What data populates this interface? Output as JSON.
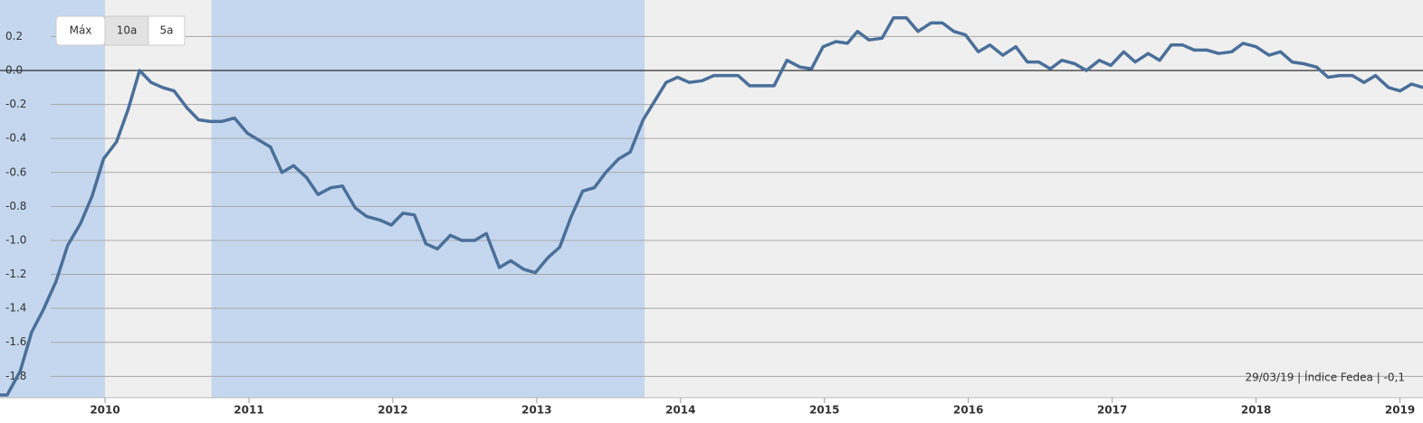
{
  "chart_data": {
    "type": "line",
    "buttons": [
      "Máx",
      "10a",
      "5a"
    ],
    "active_button": 1,
    "annotation": "29/03/19 | Índice Fedea | -0,1",
    "x": [
      2009.27,
      2009.32,
      2009.41,
      2009.49,
      2009.57,
      2009.66,
      2009.74,
      2009.83,
      2009.91,
      2009.99,
      2010.08,
      2010.16,
      2010.24,
      2010.32,
      2010.4,
      2010.48,
      2010.57,
      2010.65,
      2010.73,
      2010.81,
      2010.9,
      2010.99,
      2011.07,
      2011.15,
      2011.23,
      2011.31,
      2011.4,
      2011.48,
      2011.57,
      2011.65,
      2011.74,
      2011.82,
      2011.91,
      2011.99,
      2012.07,
      2012.15,
      2012.23,
      2012.31,
      2012.4,
      2012.48,
      2012.57,
      2012.65,
      2012.74,
      2012.82,
      2012.91,
      2012.99,
      2013.08,
      2013.16,
      2013.24,
      2013.32,
      2013.4,
      2013.48,
      2013.57,
      2013.65,
      2013.74,
      2013.82,
      2013.9,
      2013.98,
      2014.06,
      2014.15,
      2014.23,
      2014.31,
      2014.4,
      2014.48,
      2014.57,
      2014.65,
      2014.74,
      2014.83,
      2014.91,
      2014.99,
      2015.08,
      2015.16,
      2015.23,
      2015.31,
      2015.4,
      2015.48,
      2015.57,
      2015.65,
      2015.74,
      2015.82,
      2015.9,
      2015.98,
      2016.07,
      2016.15,
      2016.24,
      2016.33,
      2016.41,
      2016.49,
      2016.57,
      2016.65,
      2016.74,
      2016.82,
      2016.91,
      2016.99,
      2017.08,
      2017.16,
      2017.25,
      2017.33,
      2017.41,
      2017.49,
      2017.57,
      2017.66,
      2017.74,
      2017.83,
      2017.91,
      2018.0,
      2018.09,
      2018.17,
      2018.25,
      2018.33,
      2018.42,
      2018.5,
      2018.58,
      2018.67,
      2018.75,
      2018.83,
      2018.92,
      2019.0,
      2019.08,
      2019.16
    ],
    "series": [
      {
        "color": "#4a6f9a",
        "values": [
          -1.91,
          -1.91,
          -1.77,
          -1.54,
          -1.41,
          -1.24,
          -1.03,
          -0.9,
          -0.74,
          -0.52,
          -0.42,
          -0.23,
          0.0,
          -0.07,
          -0.1,
          -0.12,
          -0.22,
          -0.29,
          -0.3,
          -0.3,
          -0.28,
          -0.37,
          -0.41,
          -0.45,
          -0.6,
          -0.56,
          -0.63,
          -0.73,
          -0.69,
          -0.68,
          -0.81,
          -0.86,
          -0.88,
          -0.91,
          -0.84,
          -0.85,
          -1.02,
          -1.05,
          -0.97,
          -1.0,
          -1.0,
          -0.96,
          -1.16,
          -1.12,
          -1.17,
          -1.19,
          -1.1,
          -1.04,
          -0.86,
          -0.71,
          -0.69,
          -0.6,
          -0.52,
          -0.48,
          -0.29,
          -0.18,
          -0.07,
          -0.04,
          -0.07,
          -0.06,
          -0.03,
          -0.03,
          -0.03,
          -0.09,
          -0.09,
          -0.09,
          0.06,
          0.02,
          0.01,
          0.14,
          0.17,
          0.16,
          0.23,
          0.18,
          0.19,
          0.31,
          0.31,
          0.23,
          0.28,
          0.28,
          0.23,
          0.21,
          0.11,
          0.15,
          0.09,
          0.14,
          0.05,
          0.05,
          0.01,
          0.06,
          0.04,
          0.0,
          0.06,
          0.03,
          0.11,
          0.05,
          0.1,
          0.06,
          0.15,
          0.15,
          0.12,
          0.12,
          0.1,
          0.11,
          0.16,
          0.14,
          0.09,
          0.11,
          0.05,
          0.04,
          0.02,
          -0.04,
          -0.03,
          -0.03,
          -0.07,
          -0.03,
          -0.1,
          -0.12,
          -0.08,
          -0.1
        ]
      }
    ],
    "bands": [
      [
        2009.27,
        2010.0
      ],
      [
        2010.74,
        2013.75
      ]
    ],
    "band_color": "#c5d7ee",
    "xlim": [
      2009.27,
      2019.16
    ],
    "xticks": [
      2010,
      2011,
      2012,
      2013,
      2014,
      2015,
      2016,
      2017,
      2018,
      2019
    ],
    "ylim": [
      -1.926,
      0.415
    ],
    "yticks": [
      0.2,
      {
        "value": 0,
        "label": "0.0"
      },
      -0.2,
      -0.4,
      -0.6,
      -0.8,
      {
        "value": -1,
        "label": "-1.0"
      },
      -1.2,
      -1.4,
      -1.6,
      -1.8
    ],
    "grid": true
  }
}
